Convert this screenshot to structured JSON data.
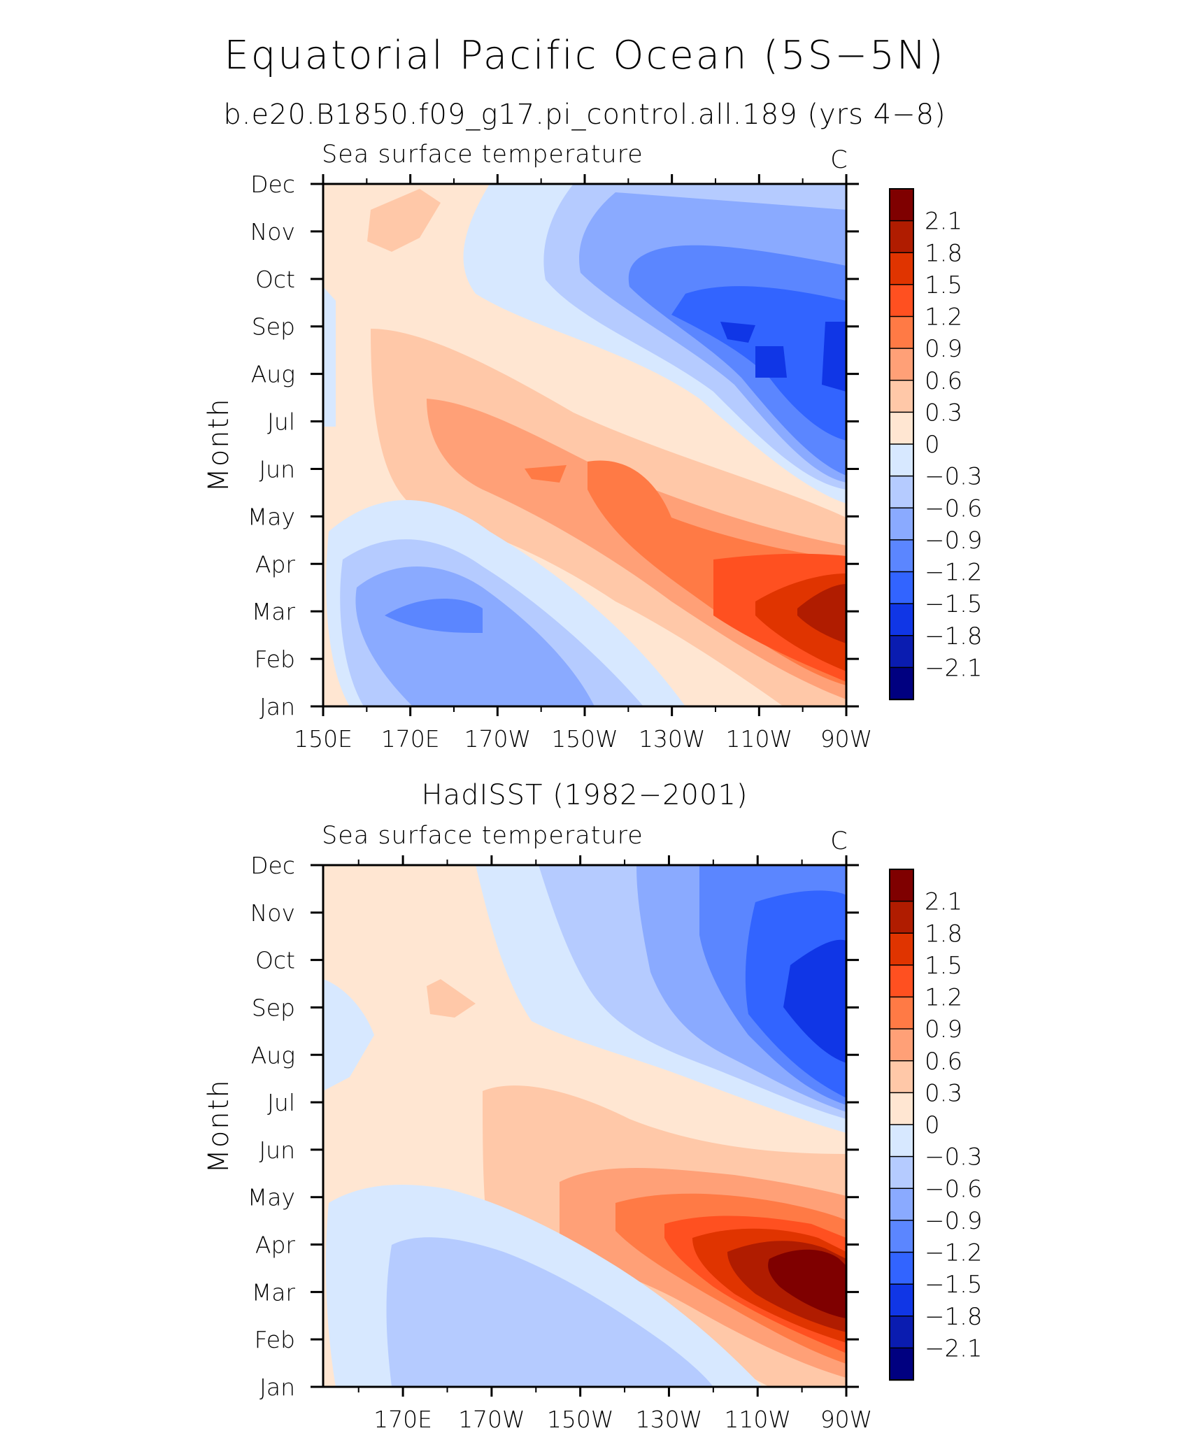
{
  "figure": {
    "title": "Equatorial Pacific Ocean (5S−5N)"
  },
  "chart_data": [
    {
      "type": "heatmap",
      "title": "b.e20.B1850.f09_g17.pi_control.all.189 (yrs 4−8)",
      "left_label": "Sea surface temperature",
      "units": "C",
      "xlabel": "",
      "ylabel": "Month",
      "x_tick_labels": [
        "150E",
        "170E",
        "170W",
        "150W",
        "130W",
        "110W",
        "90W"
      ],
      "x_tick_values": [
        150,
        170,
        190,
        210,
        230,
        250,
        270
      ],
      "x_range": [
        150,
        270
      ],
      "y_tick_labels": [
        "Jan",
        "Feb",
        "Mar",
        "Apr",
        "May",
        "Jun",
        "Jul",
        "Aug",
        "Sep",
        "Oct",
        "Nov",
        "Dec"
      ],
      "y_range": [
        1,
        12
      ],
      "colorbar_levels": [
        "2.1",
        "1.8",
        "1.5",
        "1.2",
        "0.9",
        "0.6",
        "0.3",
        "0",
        "−0.3",
        "−0.6",
        "−0.9",
        "−1.2",
        "−1.5",
        "−1.8",
        "−2.1"
      ],
      "colorbar_colors": [
        "#7f0000",
        "#b01c00",
        "#e03400",
        "#ff5020",
        "#ff7a45",
        "#ffa077",
        "#ffc8a8",
        "#ffe6d2",
        "#d7e8ff",
        "#b5cbff",
        "#8aaaff",
        "#5b86ff",
        "#3264ff",
        "#1036e6",
        "#0a1cb0",
        "#000080"
      ],
      "grid": false,
      "legend": "right colorbar"
    },
    {
      "type": "heatmap",
      "title": "HadISST (1982−2001)",
      "left_label": "Sea surface temperature",
      "units": "C",
      "xlabel": "",
      "ylabel": "Month",
      "x_tick_labels": [
        "170E",
        "170W",
        "150W",
        "130W",
        "110W",
        "90W"
      ],
      "x_tick_values": [
        170,
        190,
        210,
        230,
        250,
        270
      ],
      "x_range": [
        152,
        270
      ],
      "y_tick_labels": [
        "Jan",
        "Feb",
        "Mar",
        "Apr",
        "May",
        "Jun",
        "Jul",
        "Aug",
        "Sep",
        "Oct",
        "Nov",
        "Dec"
      ],
      "y_range": [
        1,
        12
      ],
      "colorbar_levels": [
        "2.1",
        "1.8",
        "1.5",
        "1.2",
        "0.9",
        "0.6",
        "0.3",
        "0",
        "−0.3",
        "−0.6",
        "−0.9",
        "−1.2",
        "−1.5",
        "−1.8",
        "−2.1"
      ],
      "colorbar_colors": [
        "#7f0000",
        "#b01c00",
        "#e03400",
        "#ff5020",
        "#ff7a45",
        "#ffa077",
        "#ffc8a8",
        "#ffe6d2",
        "#d7e8ff",
        "#b5cbff",
        "#8aaaff",
        "#5b86ff",
        "#3264ff",
        "#1036e6",
        "#0a1cb0",
        "#000080"
      ],
      "grid": false,
      "legend": "right colorbar"
    }
  ]
}
